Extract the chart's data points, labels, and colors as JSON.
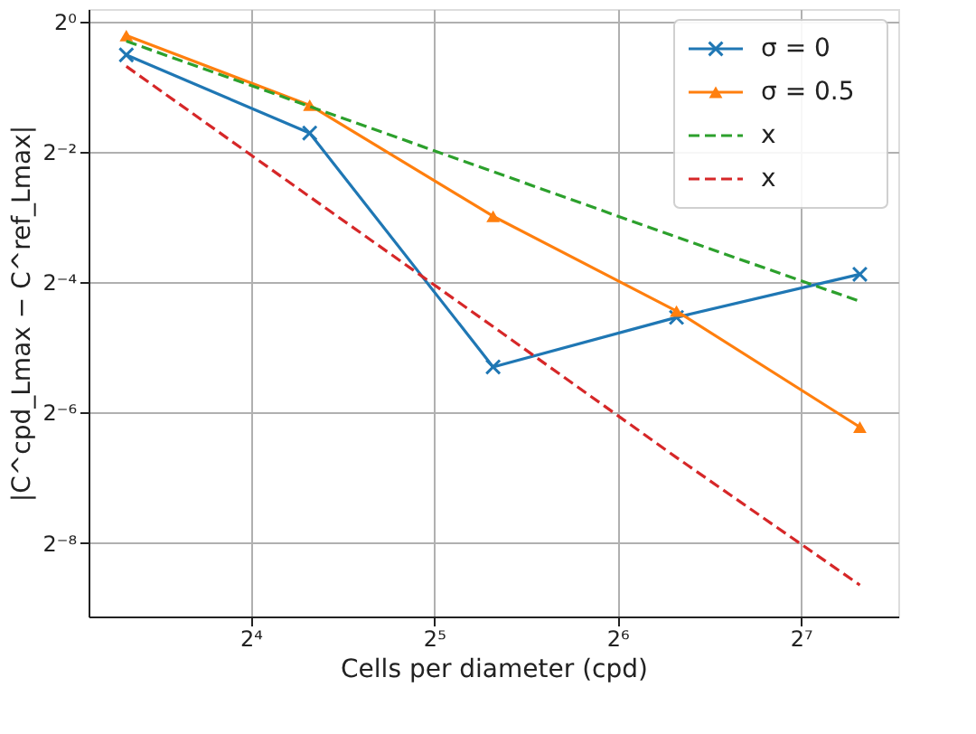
{
  "chart_data": {
    "type": "line",
    "xlabel": "Cells per diameter (cpd)",
    "ylabel": "|C^cpd_Lmax − C^ref_Lmax|",
    "x": [
      10,
      20,
      40,
      80,
      160
    ],
    "series": [
      {
        "name": "σ = 0",
        "color": "#1f77b4",
        "marker": "cross",
        "line_style": "solid",
        "values": [
          0.7,
          0.305,
          0.0254,
          0.043,
          0.068
        ]
      },
      {
        "name": "σ = 0.5",
        "color": "#ff7f0e",
        "marker": "triangle",
        "line_style": "solid",
        "values": [
          0.86,
          0.41,
          0.126,
          0.046,
          0.0134
        ]
      },
      {
        "name": "x",
        "color": "#2ca02c",
        "marker": "none",
        "line_style": "dashed",
        "values": [
          0.81,
          0.405,
          0.2025,
          0.101,
          0.051
        ]
      },
      {
        "name": "x",
        "color": "#d62728",
        "marker": "none",
        "line_style": "dashed",
        "values": [
          0.62,
          0.155,
          0.039,
          0.0097,
          0.0025
        ]
      }
    ],
    "log": "xy",
    "xlim": [
      8.67,
      185
    ],
    "ylim": [
      0.00179,
      1.14
    ],
    "xticks": [
      {
        "value": 16,
        "label": "2⁴"
      },
      {
        "value": 32,
        "label": "2⁵"
      },
      {
        "value": 64,
        "label": "2⁶"
      },
      {
        "value": 128,
        "label": "2⁷"
      }
    ],
    "yticks": [
      {
        "value": 1,
        "label": "2⁰"
      },
      {
        "value": 0.25,
        "label": "2⁻²"
      },
      {
        "value": 0.0625,
        "label": "2⁻⁴"
      },
      {
        "value": 0.015625,
        "label": "2⁻⁶"
      },
      {
        "value": 0.00390625,
        "label": "2⁻⁸"
      }
    ],
    "grid": true,
    "legend": "top right"
  }
}
